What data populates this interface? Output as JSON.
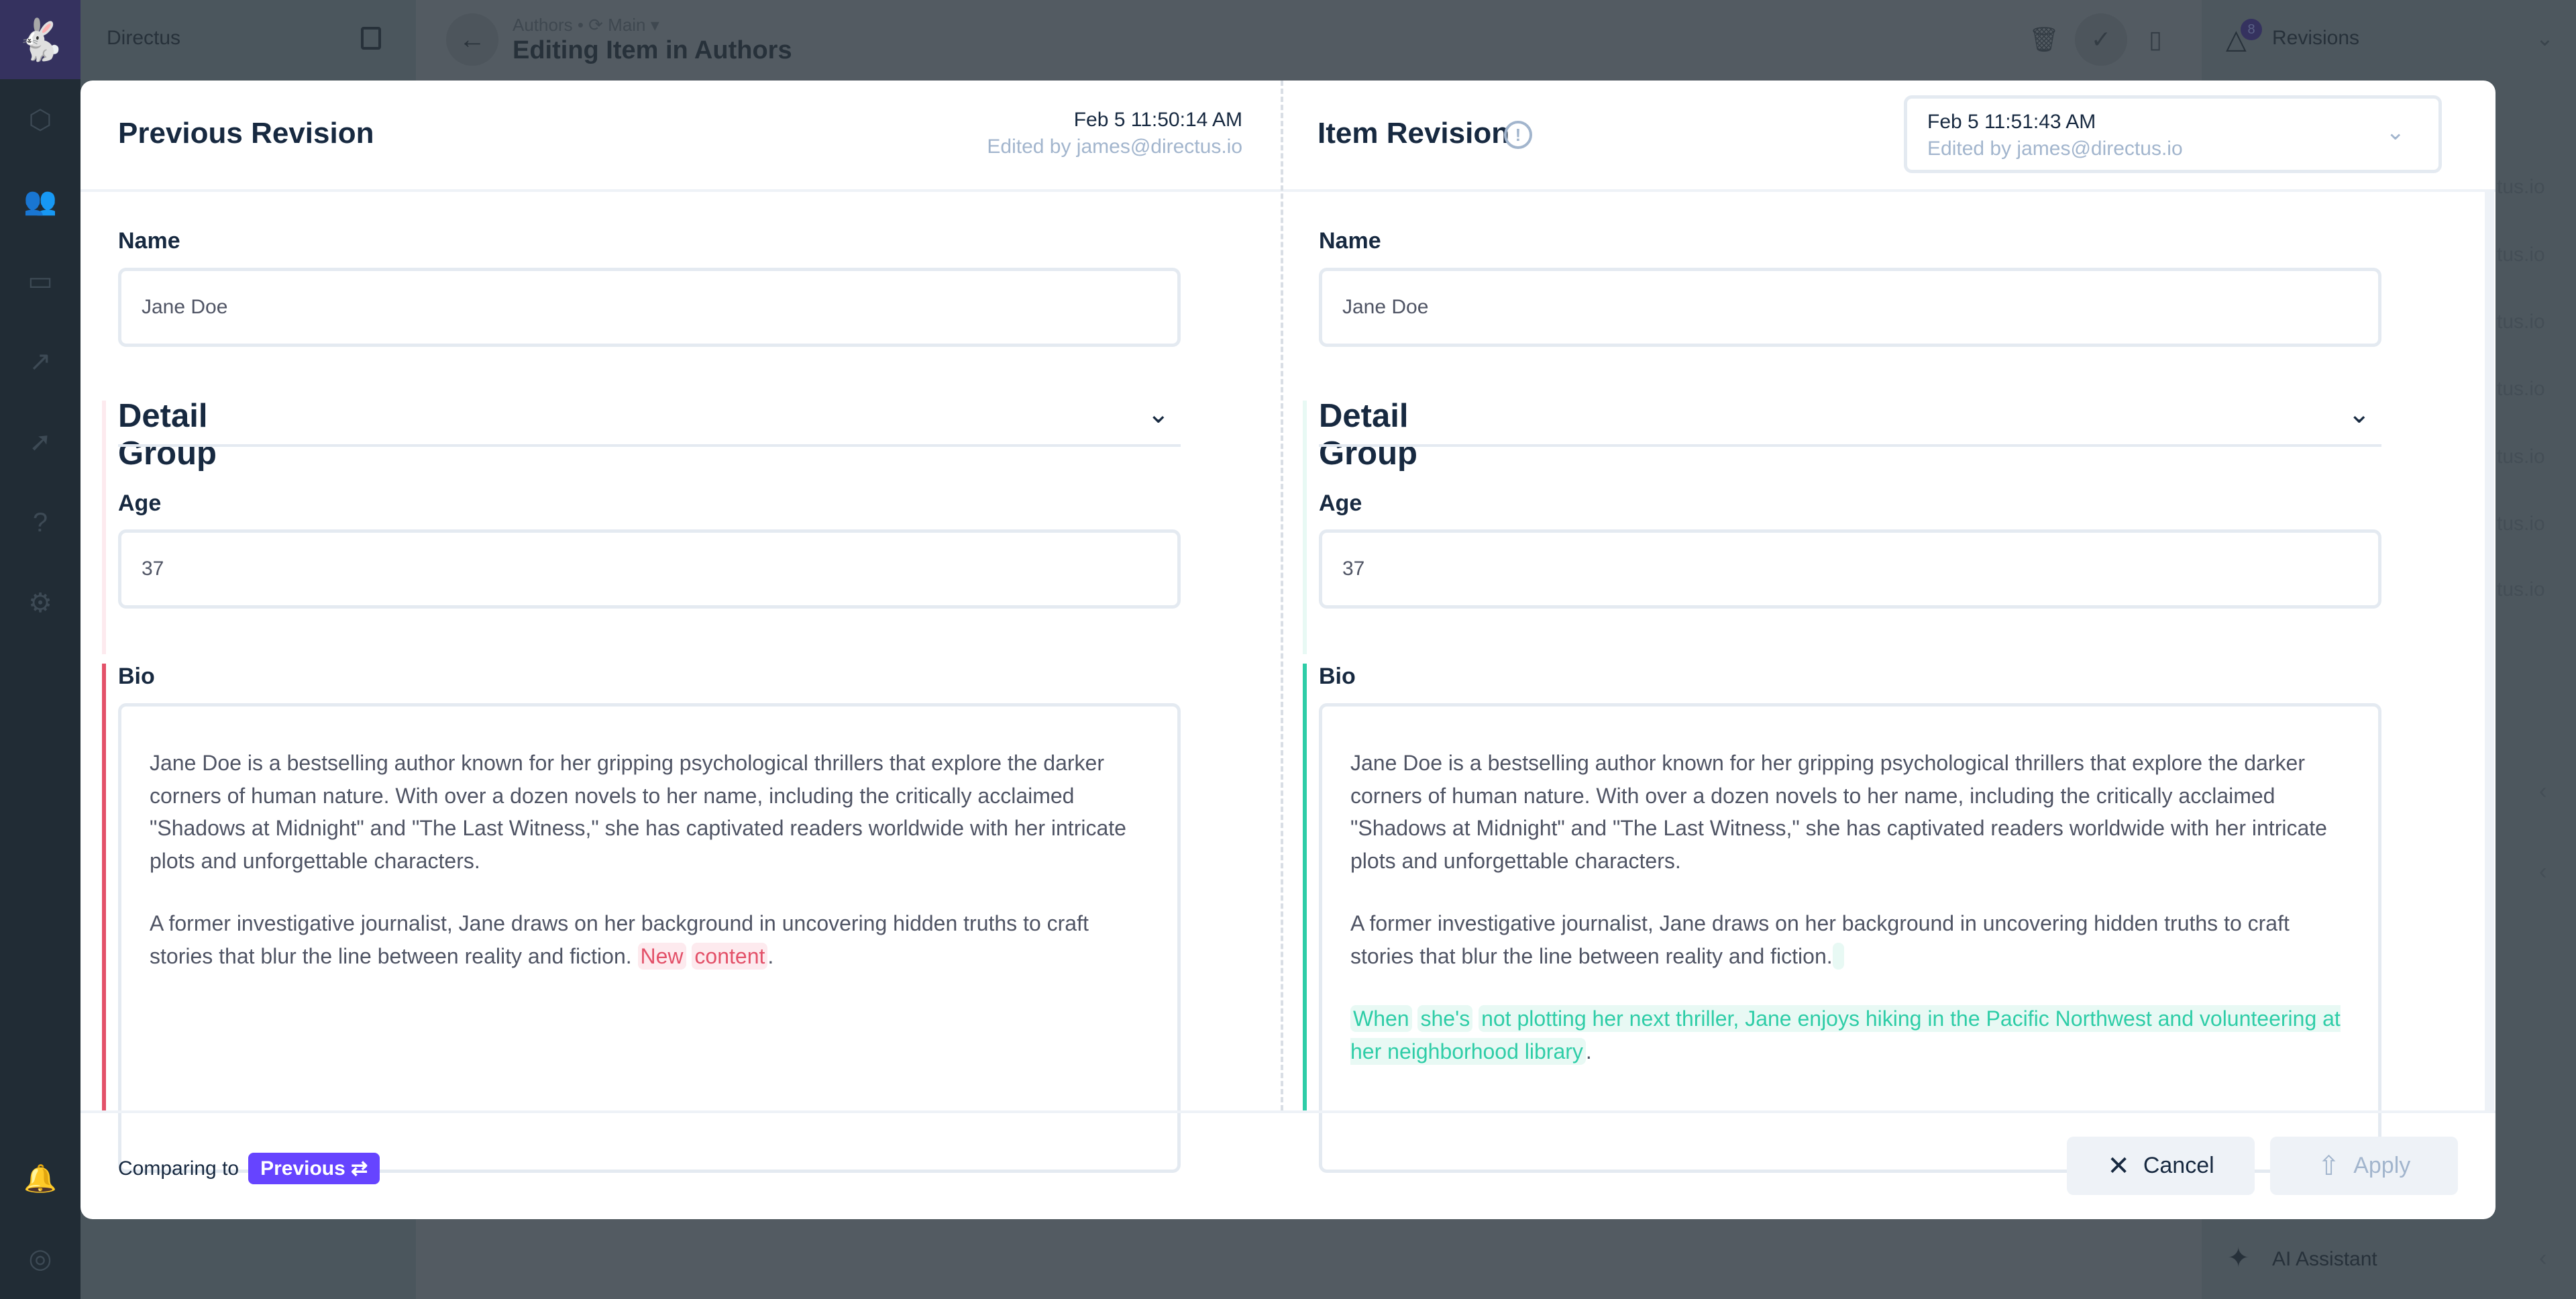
{
  "app": {
    "name": "Directus",
    "colors": {
      "accent": "#6644ff",
      "removed": "#e35169",
      "added": "#2ecda7"
    }
  },
  "nav": {
    "icons": [
      "content-icon",
      "users-icon",
      "files-icon",
      "insights-icon",
      "deployments-icon",
      "help-icon",
      "settings-icon"
    ],
    "bottom_icons": [
      "notifications-icon",
      "user-icon"
    ]
  },
  "header": {
    "breadcrumb": "Authors • ⟳ Main ▾",
    "title": "Editing Item in Authors"
  },
  "right_sidebar": {
    "revisions_label": "Revisions",
    "revisions_count": "8",
    "ai_label": "AI Assistant",
    "list_fragment": "tus.io"
  },
  "modal": {
    "left": {
      "title": "Previous Revision",
      "date": "Feb 5 11:50:14 AM",
      "editor": "Edited by james@directus.io"
    },
    "right": {
      "title": "Item Revision",
      "date": "Feb 5 11:51:43 AM",
      "editor": "Edited by james@directus.io"
    },
    "fields": {
      "name_label": "Name",
      "name_value": "Jane Doe",
      "group_label": "Detail Group",
      "age_label": "Age",
      "age_value": "37",
      "bio_label": "Bio"
    },
    "bio_p1": "Jane Doe is a bestselling author known for her gripping psychological thrillers that explore the darker corners of human nature. With over a dozen novels to her name, including the critically acclaimed \"Shadows at Midnight\" and \"The Last Witness,\" she has captivated readers worldwide with her intricate plots and unforgettable characters.",
    "bio_p2": "A former investigative journalist, Jane draws on her background in uncovering hidden truths to craft stories that blur the line between reality and fiction.",
    "left_removed": [
      "New",
      "content"
    ],
    "left_tail": ".",
    "right_added": [
      "When",
      "she's",
      "not plotting her next thriller, Jane enjoys hiking in the Pacific Northwest and volunteering at her neighborhood library"
    ],
    "right_tail": ".",
    "footer": {
      "comparing_label": "Comparing to",
      "compare_target": "Previous ⇄",
      "cancel": "Cancel",
      "apply": "Apply"
    }
  }
}
